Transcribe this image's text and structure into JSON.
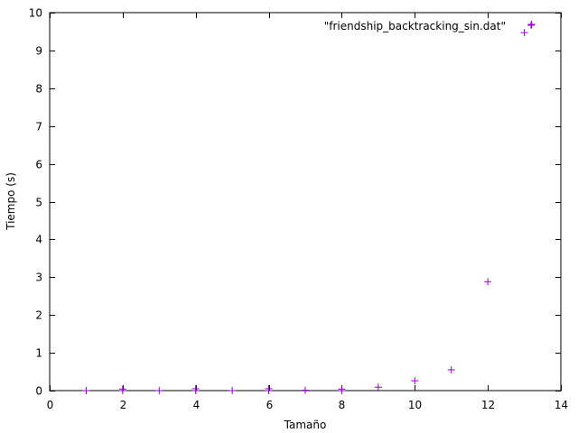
{
  "chart_data": {
    "type": "scatter",
    "xlabel": "Tamaño",
    "ylabel": "Tiempo (s)",
    "xlim": [
      0,
      14
    ],
    "ylim": [
      0,
      10
    ],
    "xticks": [
      0,
      2,
      4,
      6,
      8,
      10,
      12,
      14
    ],
    "yticks": [
      0,
      1,
      2,
      3,
      4,
      5,
      6,
      7,
      8,
      9,
      10
    ],
    "grid": false,
    "legend_position": "top-right",
    "marker": "plus",
    "series": [
      {
        "name": "\"friendship_backtracking_sin.dat\"",
        "color": "#9400d3",
        "points": [
          {
            "x": 1,
            "y": 0.0
          },
          {
            "x": 2,
            "y": 0.0
          },
          {
            "x": 2,
            "y": 0.04
          },
          {
            "x": 3,
            "y": 0.0
          },
          {
            "x": 4,
            "y": 0.0
          },
          {
            "x": 4,
            "y": 0.05
          },
          {
            "x": 5,
            "y": 0.0
          },
          {
            "x": 6,
            "y": 0.0
          },
          {
            "x": 6,
            "y": 0.05
          },
          {
            "x": 7,
            "y": 0.01
          },
          {
            "x": 8,
            "y": 0.0
          },
          {
            "x": 8,
            "y": 0.04
          },
          {
            "x": 9,
            "y": 0.09
          },
          {
            "x": 10,
            "y": 0.26
          },
          {
            "x": 11,
            "y": 0.55
          },
          {
            "x": 12,
            "y": 2.88
          },
          {
            "x": 13,
            "y": 9.47
          },
          {
            "x": 13.2,
            "y": 9.69
          }
        ]
      }
    ]
  }
}
